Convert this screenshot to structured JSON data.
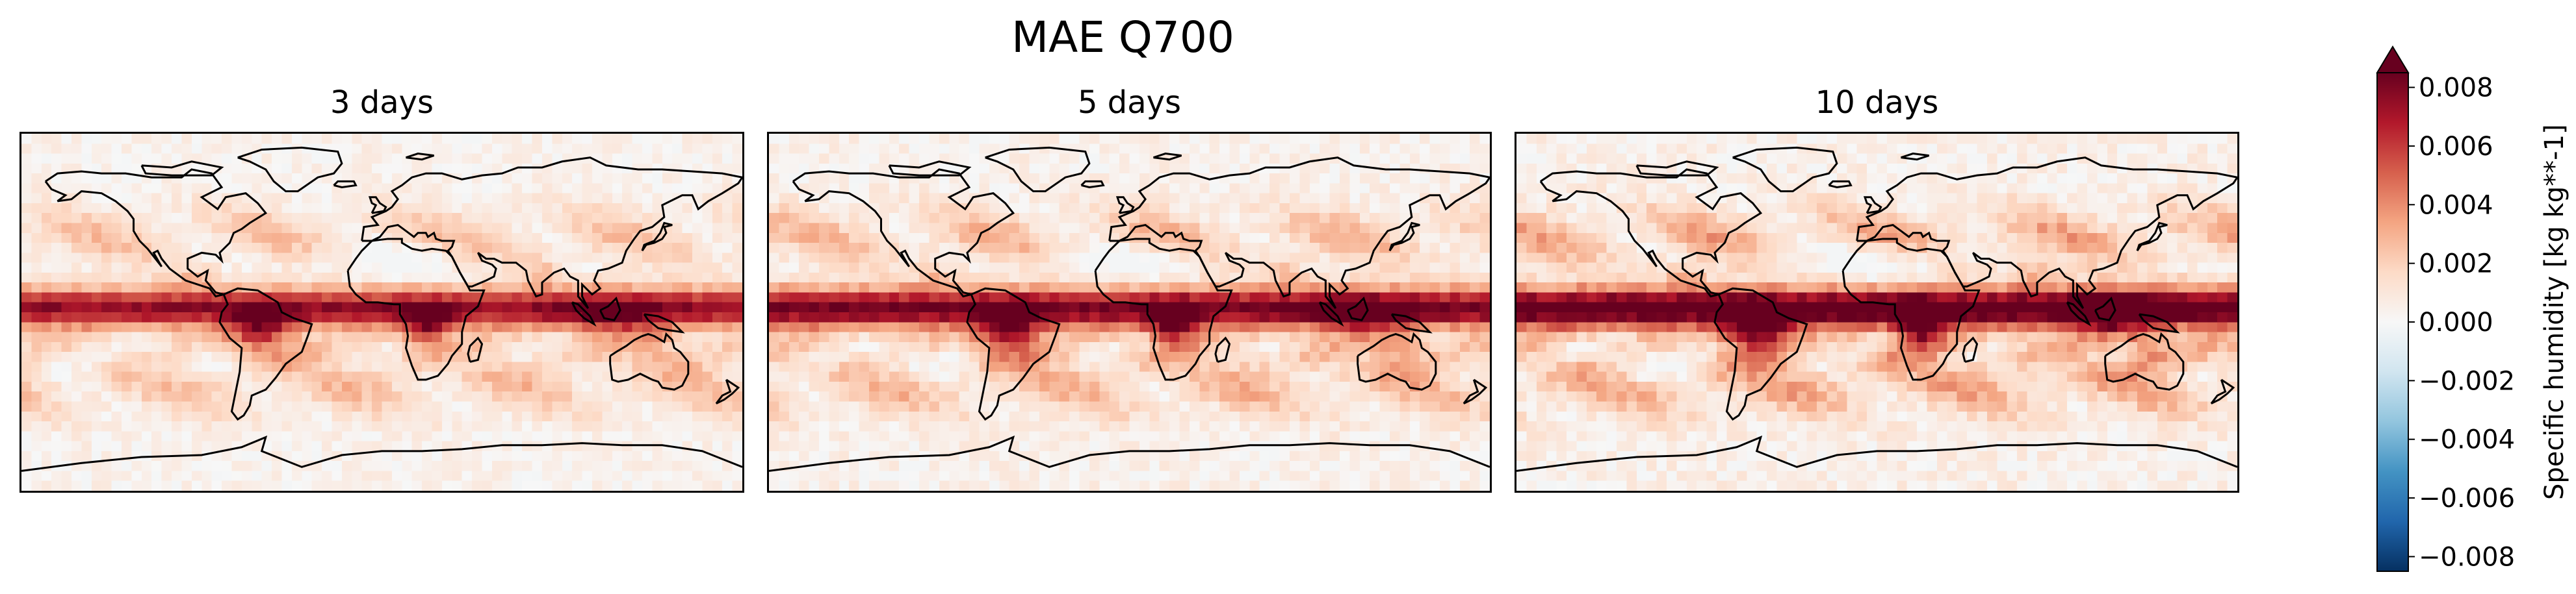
{
  "figure": {
    "title": "MAE Q700"
  },
  "panels": [
    {
      "title": "3 days",
      "lead_days": 3
    },
    {
      "title": "5 days",
      "lead_days": 5
    },
    {
      "title": "10 days",
      "lead_days": 10
    }
  ],
  "colorbar": {
    "label": "Specific humidity [kg kg**-1]",
    "ticks": [
      "0.008",
      "0.006",
      "0.004",
      "0.002",
      "0.000",
      "−0.002",
      "−0.004",
      "−0.006",
      "−0.008"
    ],
    "tick_values": [
      0.008,
      0.006,
      0.004,
      0.002,
      0.0,
      -0.002,
      -0.004,
      -0.006,
      -0.008
    ],
    "range": [
      -0.0085,
      0.0085
    ],
    "extend": "max",
    "colormap": "RdBu_r",
    "colors": [
      "#053061",
      "#2166ac",
      "#4393c3",
      "#92c5de",
      "#d1e5f0",
      "#f7f7f7",
      "#fddbc7",
      "#f4a582",
      "#d6604d",
      "#b2182b",
      "#67001f"
    ]
  },
  "chart_data": {
    "type": "heatmap",
    "title": "MAE Q700",
    "subplots": [
      "3 days",
      "5 days",
      "10 days"
    ],
    "projection": "PlateCarree (global)",
    "lon_range": [
      -180,
      180
    ],
    "lat_range": [
      -90,
      90
    ],
    "value_range": [
      -0.0085,
      0.0085
    ],
    "colorbar_label": "Specific humidity [kg kg**-1]",
    "summary": {
      "tropical_band_max": 0.008,
      "midlatitude_typical": 0.002,
      "polar_typical": 0.0003,
      "land_hotspots": [
        "Amazon",
        "Central Africa",
        "Maritime Continent",
        "Northern Australia"
      ]
    },
    "grid_on": false,
    "legend": "colorbar-right"
  }
}
